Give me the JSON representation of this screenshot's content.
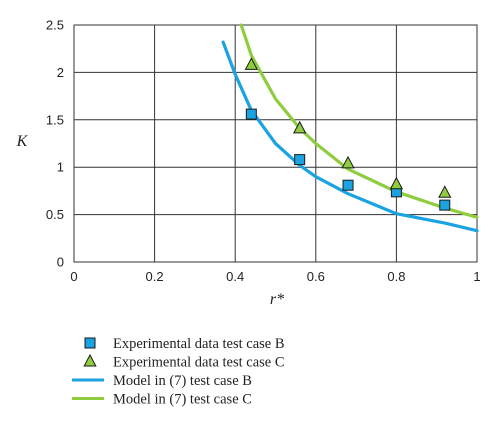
{
  "chart_data": {
    "type": "scatter",
    "xlabel": "r*",
    "ylabel": "K",
    "xlim": [
      0,
      1
    ],
    "ylim": [
      0,
      2.5
    ],
    "x_ticks": [
      "0",
      "0.2",
      "0.4",
      "0.6",
      "0.8",
      "1"
    ],
    "y_ticks": [
      "0",
      "0.5",
      "1",
      "1.5",
      "2",
      "2.5"
    ],
    "grid": true,
    "legend_position": "bottom-left",
    "colors": {
      "case_b": "#1aa3e0",
      "case_c": "#8fcd3f"
    },
    "series": [
      {
        "name": "Experimental data test case B",
        "kind": "marker",
        "marker": "square",
        "color": "#1aa3e0",
        "x": [
          0.44,
          0.56,
          0.68,
          0.8,
          0.92
        ],
        "y": [
          1.56,
          1.08,
          0.81,
          0.74,
          0.6
        ]
      },
      {
        "name": "Experimental data test case C",
        "kind": "marker",
        "marker": "triangle",
        "color": "#8fcd3f",
        "x": [
          0.44,
          0.56,
          0.68,
          0.8,
          0.92
        ],
        "y": [
          2.08,
          1.41,
          1.04,
          0.82,
          0.73
        ]
      },
      {
        "name": "Model in (7) test case B",
        "kind": "line",
        "color": "#1aa3e0",
        "x": [
          0.37,
          0.4,
          0.44,
          0.5,
          0.56,
          0.6,
          0.68,
          0.8,
          0.92,
          1.0
        ],
        "y": [
          2.32,
          1.98,
          1.6,
          1.25,
          1.02,
          0.9,
          0.72,
          0.51,
          0.41,
          0.33
        ]
      },
      {
        "name": "Model in (7) test case C",
        "kind": "line",
        "color": "#8fcd3f",
        "x": [
          0.415,
          0.44,
          0.5,
          0.56,
          0.6,
          0.68,
          0.8,
          0.92,
          1.0
        ],
        "y": [
          2.5,
          2.18,
          1.72,
          1.41,
          1.25,
          0.98,
          0.74,
          0.57,
          0.47
        ]
      }
    ]
  }
}
